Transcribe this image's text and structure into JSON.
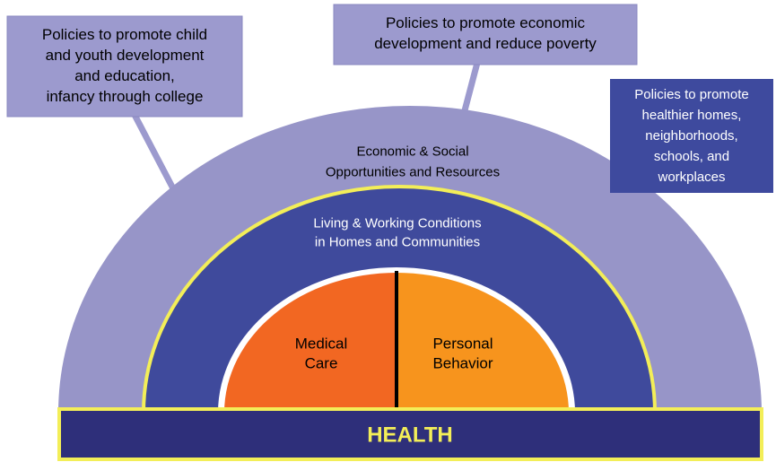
{
  "policies": [
    {
      "lines": [
        "Policies to promote child",
        "and youth development",
        "and education,",
        "infancy through college"
      ]
    },
    {
      "lines": [
        "Policies to promote economic",
        "development and reduce poverty"
      ]
    },
    {
      "lines": [
        "Policies to promote",
        "healthier homes,",
        "neighborhoods,",
        "schools, and",
        "workplaces"
      ]
    }
  ],
  "layers": {
    "outer": {
      "lines": [
        "Economic & Social",
        "Opportunities and Resources"
      ]
    },
    "middle": {
      "lines": [
        "Living & Working Conditions",
        "in Homes and Communities"
      ]
    },
    "inner_left": {
      "lines": [
        "Medical",
        "Care"
      ]
    },
    "inner_right": {
      "lines": [
        "Personal",
        "Behavior"
      ]
    }
  },
  "base": {
    "label": "HEALTH"
  }
}
